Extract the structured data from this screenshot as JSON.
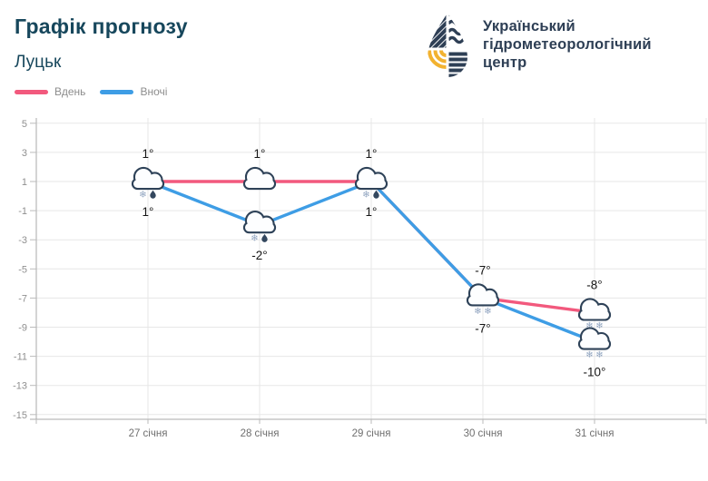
{
  "header": {
    "title": "Графік прогнозу",
    "city": "Луцьк"
  },
  "logo": {
    "line1": "Український",
    "line2": "гідрометеорологічний",
    "line3": "центр"
  },
  "legend": [
    {
      "label": "Вдень",
      "color": "#F2597D"
    },
    {
      "label": "Вночі",
      "color": "#3E9DE5"
    }
  ],
  "theme": {
    "title_color": "#17475C",
    "logo_navy": "#2E3F55",
    "logo_yellow": "#F2B230",
    "cloud_stroke": "#2E4258",
    "cloud_fill": "#FDFEFF",
    "snowflake": "#8FA3BF",
    "raindrop": "#33475E",
    "grid": "#E7E7E7",
    "axis": "#AAAAAA",
    "tick_label": "#8F8F8F",
    "category_label": "#6F6F6F",
    "value_label": "#151515"
  },
  "chart_data": {
    "type": "line",
    "title": "Графік прогнозу — Луцьк",
    "categories": [
      "27 січня",
      "28 січня",
      "29 січня",
      "30 січня",
      "31 січня"
    ],
    "yticks": [
      5,
      3,
      1,
      -1,
      -3,
      -5,
      -7,
      -9,
      -11,
      -13,
      -15
    ],
    "ylim": [
      -15,
      5
    ],
    "grid": true,
    "legend_position": "top-left",
    "series": [
      {
        "name": "Вдень",
        "color": "#F2597D",
        "values": [
          1,
          1,
          1,
          -7,
          -8
        ],
        "labels": [
          "1°",
          "1°",
          "1°",
          "-7°",
          "-8°"
        ],
        "precip": [
          "sleet",
          "none",
          "sleet",
          "snow",
          "snow"
        ],
        "marker": "cloud"
      },
      {
        "name": "Вночі",
        "color": "#3E9DE5",
        "values": [
          1,
          -2,
          1,
          -7,
          -10
        ],
        "labels": [
          "1°",
          "-2°",
          "1°",
          "-7°",
          "-10°"
        ],
        "precip": [
          "sleet",
          "sleet",
          "sleet",
          "snow",
          "snow"
        ],
        "marker": "cloud"
      }
    ]
  }
}
